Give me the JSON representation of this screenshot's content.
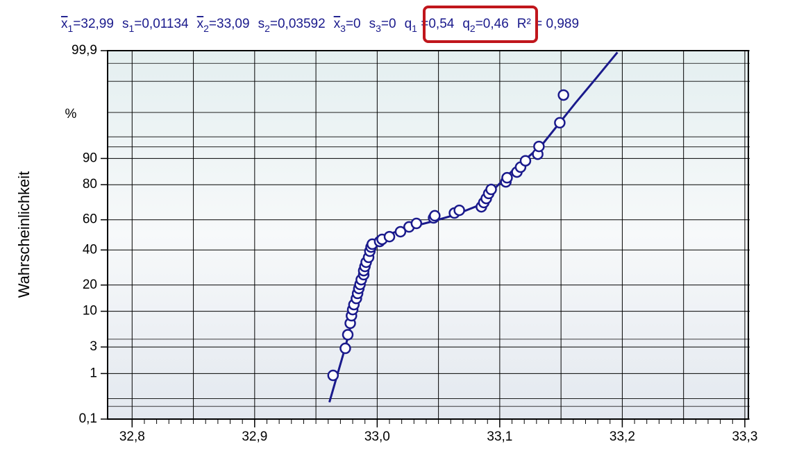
{
  "chart_data": {
    "type": "probability-plot",
    "stats": [
      {
        "symbol": "x",
        "bar": true,
        "sub": "1",
        "value": "=32,99"
      },
      {
        "symbol": "s",
        "sub": "1",
        "value": "=0,01134"
      },
      {
        "symbol": "x",
        "bar": true,
        "sub": "2",
        "value": "=33,09"
      },
      {
        "symbol": "s",
        "sub": "2",
        "value": "=0,03592"
      },
      {
        "symbol": "x",
        "bar": true,
        "sub": "3",
        "value": "=0"
      },
      {
        "symbol": "s",
        "sub": "3",
        "value": "=0"
      },
      {
        "symbol": "q",
        "sub": "1",
        "value": " =0,54"
      },
      {
        "symbol": "q",
        "sub": "2",
        "value": "=0,46"
      },
      {
        "symbol": "R²",
        "value": " = 0,989"
      }
    ],
    "y_label": "Wahrscheinlichkeit",
    "y_unit": "%",
    "y_scale": "probability",
    "xlim": [
      32.78,
      33.304
    ],
    "xticks": [
      {
        "value": 32.8,
        "label": "32,8"
      },
      {
        "value": 32.9,
        "label": "32,9"
      },
      {
        "value": 33.0,
        "label": "33,0"
      },
      {
        "value": 33.1,
        "label": "33,1"
      },
      {
        "value": 33.2,
        "label": "33,2"
      },
      {
        "value": 33.3,
        "label": "33,3"
      }
    ],
    "x_grid": [
      32.85,
      32.95,
      33.05,
      33.15,
      33.25
    ],
    "x_minor_step": 0.01,
    "ylim": [
      0.1,
      99.9
    ],
    "yticks": [
      {
        "value": 0.1,
        "label": "0,1"
      },
      1,
      3,
      10,
      20,
      40,
      60,
      80,
      90,
      {
        "value": 99.9,
        "label": "99,9"
      }
    ],
    "y_minor": [
      0.2,
      0.3,
      4,
      93,
      95,
      98,
      99.5,
      99.8
    ],
    "grid": true,
    "color": "#1a1a8c",
    "points": {
      "x": [
        32.964,
        32.974,
        32.976,
        32.978,
        32.979,
        32.98,
        32.981,
        32.983,
        32.984,
        32.985,
        32.986,
        32.987,
        32.989,
        32.989,
        32.99,
        32.991,
        32.993,
        32.994,
        32.995,
        32.996,
        33.002,
        33.004,
        33.01,
        33.019,
        33.026,
        33.032,
        33.046,
        33.047,
        33.063,
        33.067,
        33.085,
        33.087,
        33.089,
        33.091,
        33.093,
        33.105,
        33.106,
        33.114,
        33.117,
        33.121,
        33.131,
        33.132,
        33.149,
        33.152
      ],
      "values": [
        0.92,
        2.85,
        4.7,
        6.9,
        8.75,
        10.5,
        12.1,
        14.3,
        16.3,
        18.4,
        20.3,
        22.6,
        25.2,
        27.4,
        29.8,
        32.3,
        35.3,
        39.2,
        41.9,
        43.8,
        45.6,
        47,
        48.8,
        52.1,
        55.3,
        57.6,
        61.2,
        62.6,
        64.3,
        66,
        68.1,
        70.6,
        72.9,
        75.6,
        77.7,
        81.3,
        83.1,
        85.4,
        87.2,
        89.3,
        91.2,
        93.1,
        97,
        99.05
      ]
    },
    "fit": {
      "x": [
        32.961,
        32.974,
        32.984,
        32.995,
        33.001,
        33.021,
        33.043,
        33.063,
        33.083,
        33.094,
        33.111,
        33.134,
        33.162,
        33.179,
        33.196
      ],
      "values": [
        0.25,
        3,
        14.3,
        41.9,
        47.4,
        54,
        58.5,
        63,
        69,
        77,
        86.2,
        93.3,
        98.67,
        99.58,
        99.89
      ]
    }
  }
}
